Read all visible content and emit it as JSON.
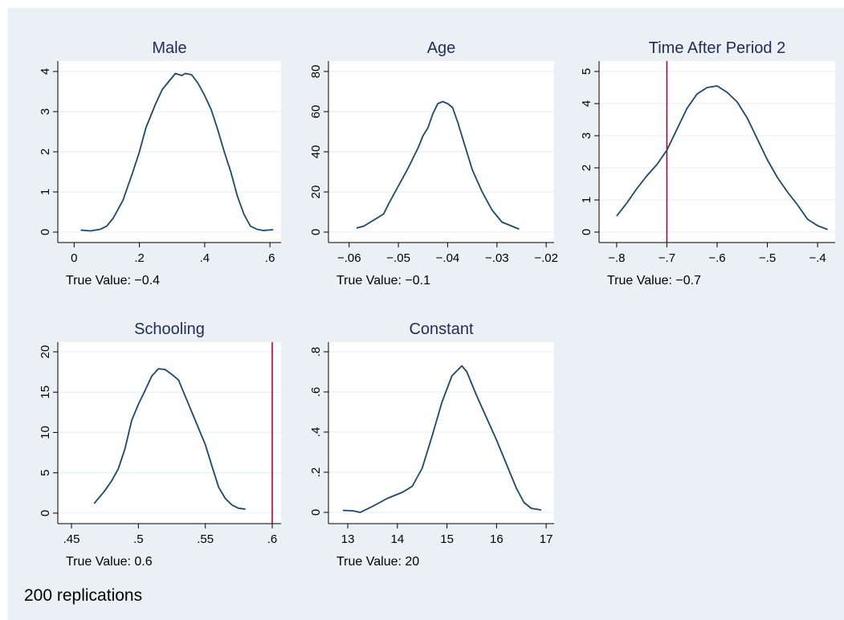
{
  "chart_data": [
    {
      "type": "line",
      "title": "Male",
      "caption": "True Value: −0.4",
      "color": "#1a476f",
      "grid": true,
      "x": [
        0.02,
        0.05,
        0.08,
        0.1,
        0.12,
        0.15,
        0.18,
        0.2,
        0.22,
        0.25,
        0.27,
        0.29,
        0.31,
        0.33,
        0.34,
        0.36,
        0.38,
        0.4,
        0.42,
        0.44,
        0.46,
        0.48,
        0.5,
        0.52,
        0.54,
        0.56,
        0.58,
        0.61
      ],
      "values": [
        0.05,
        0.03,
        0.07,
        0.15,
        0.35,
        0.8,
        1.5,
        2.0,
        2.6,
        3.2,
        3.55,
        3.75,
        3.95,
        3.9,
        3.95,
        3.92,
        3.7,
        3.4,
        3.05,
        2.55,
        2.0,
        1.5,
        0.9,
        0.45,
        0.15,
        0.07,
        0.04,
        0.06
      ],
      "xlim": [
        -0.05,
        0.634
      ],
      "ylim": [
        -0.26,
        4.26
      ],
      "xticks": [
        0,
        {
          "value": 0.2,
          "label": ".2"
        },
        {
          "value": 0.4,
          "label": ".4"
        },
        {
          "value": 0.6,
          "label": ".6"
        }
      ],
      "yticks": [
        0,
        1,
        2,
        3,
        4
      ]
    },
    {
      "type": "line",
      "title": "Age",
      "caption": "True Value: −0.1",
      "color": "#1a476f",
      "grid": true,
      "x": [
        -0.0585,
        -0.057,
        -0.055,
        -0.053,
        -0.052,
        -0.05,
        -0.048,
        -0.046,
        -0.045,
        -0.044,
        -0.043,
        -0.042,
        -0.041,
        -0.04,
        -0.039,
        -0.038,
        -0.037,
        -0.035,
        -0.033,
        -0.031,
        -0.029,
        -0.027,
        -0.0255
      ],
      "values": [
        2,
        3,
        6,
        9,
        14,
        23,
        32,
        42,
        48,
        52,
        59,
        64,
        65,
        64,
        62,
        55,
        47,
        31,
        20,
        11,
        5,
        3,
        1.5
      ],
      "xlim": [
        -0.0642,
        -0.0184
      ],
      "ylim": [
        -5.2,
        85.2
      ],
      "xticks": [
        {
          "value": -0.06,
          "label": "−.06"
        },
        {
          "value": -0.05,
          "label": "−.05"
        },
        {
          "value": -0.04,
          "label": "−.04"
        },
        {
          "value": -0.03,
          "label": "−.03"
        },
        {
          "value": -0.02,
          "label": "−.02"
        }
      ],
      "yticks": [
        0,
        20,
        40,
        60,
        80
      ]
    },
    {
      "type": "line",
      "title": "Time After Period 2",
      "caption": "True Value: −0.7",
      "color": "#1a476f",
      "grid": true,
      "xline": -0.7,
      "xline_color": "#b4003c",
      "x": [
        -0.8,
        -0.78,
        -0.76,
        -0.74,
        -0.72,
        -0.7,
        -0.68,
        -0.66,
        -0.64,
        -0.62,
        -0.6,
        -0.58,
        -0.56,
        -0.54,
        -0.52,
        -0.5,
        -0.48,
        -0.46,
        -0.44,
        -0.42,
        -0.4,
        -0.38
      ],
      "values": [
        0.5,
        0.9,
        1.35,
        1.75,
        2.1,
        2.55,
        3.2,
        3.85,
        4.3,
        4.5,
        4.55,
        4.35,
        4.05,
        3.55,
        2.9,
        2.25,
        1.7,
        1.25,
        0.85,
        0.4,
        0.2,
        0.08
      ],
      "xlim": [
        -0.835,
        -0.365
      ],
      "ylim": [
        -0.325,
        5.325
      ],
      "xticks": [
        {
          "value": -0.8,
          "label": "−.8"
        },
        {
          "value": -0.7,
          "label": "−.7"
        },
        {
          "value": -0.6,
          "label": "−.6"
        },
        {
          "value": -0.5,
          "label": "−.5"
        },
        {
          "value": -0.4,
          "label": "−.4"
        }
      ],
      "yticks": [
        0,
        1,
        2,
        3,
        4,
        5
      ]
    },
    {
      "type": "line",
      "title": "Schooling",
      "caption": "True Value: 0.6",
      "color": "#1a476f",
      "grid": true,
      "xline": 0.6,
      "xline_color": "#b4003c",
      "x": [
        0.467,
        0.47,
        0.475,
        0.48,
        0.485,
        0.49,
        0.495,
        0.5,
        0.505,
        0.51,
        0.515,
        0.52,
        0.525,
        0.53,
        0.535,
        0.54,
        0.545,
        0.55,
        0.555,
        0.56,
        0.565,
        0.57,
        0.575,
        0.58
      ],
      "values": [
        1.2,
        1.8,
        2.8,
        4,
        5.5,
        8,
        11.5,
        13.5,
        15.2,
        17,
        17.9,
        17.8,
        17.2,
        16.5,
        14.5,
        12.5,
        10.5,
        8.5,
        5.8,
        3.2,
        1.8,
        1.0,
        0.6,
        0.5
      ],
      "xlim": [
        0.4398,
        0.6066
      ],
      "ylim": [
        -1.3,
        21.2
      ],
      "xticks": [
        {
          "value": 0.45,
          "label": ".45"
        },
        {
          "value": 0.5,
          "label": ".5"
        },
        {
          "value": 0.55,
          "label": ".55"
        },
        {
          "value": 0.6,
          "label": ".6"
        }
      ],
      "yticks": [
        0,
        5,
        10,
        15,
        20
      ]
    },
    {
      "type": "line",
      "title": "Constant",
      "caption": "True Value: 20",
      "color": "#1a476f",
      "grid": true,
      "x": [
        12.9,
        13.1,
        13.25,
        13.5,
        13.8,
        14.1,
        14.3,
        14.5,
        14.7,
        14.9,
        15.1,
        15.3,
        15.4,
        15.6,
        15.8,
        16.0,
        16.2,
        16.4,
        16.55,
        16.7,
        16.9
      ],
      "values": [
        0.01,
        0.008,
        0.0,
        0.03,
        0.07,
        0.1,
        0.13,
        0.22,
        0.38,
        0.55,
        0.68,
        0.73,
        0.7,
        0.58,
        0.47,
        0.36,
        0.24,
        0.12,
        0.05,
        0.02,
        0.012
      ],
      "xlim": [
        12.61,
        17.16
      ],
      "ylim": [
        -0.056,
        0.848
      ],
      "xticks": [
        13,
        14,
        15,
        16,
        17
      ],
      "yticks": [
        0,
        {
          "value": 0.2,
          "label": ".2"
        },
        {
          "value": 0.4,
          "label": ".4"
        },
        {
          "value": 0.6,
          "label": ".6"
        },
        {
          "value": 0.8,
          "label": ".8"
        }
      ]
    }
  ],
  "note": "200 replications"
}
